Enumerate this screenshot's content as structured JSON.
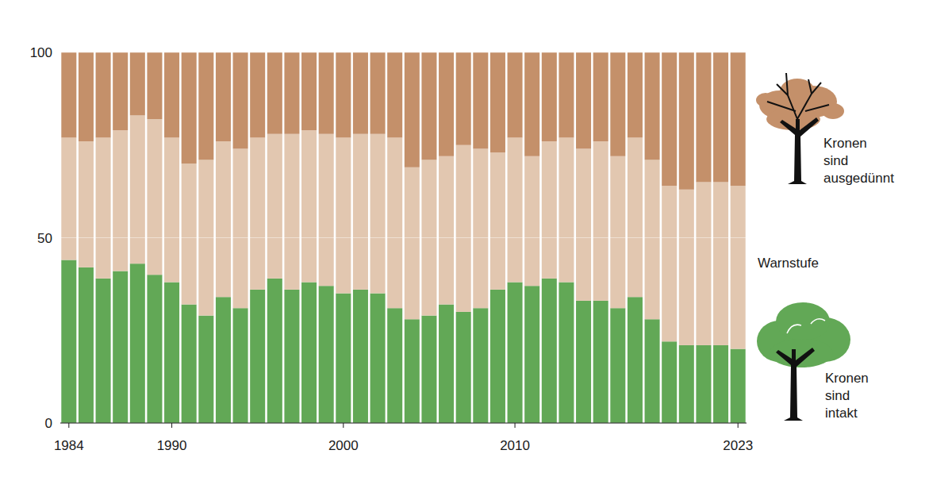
{
  "chart_data": {
    "type": "bar",
    "stacked": true,
    "categories": [
      "1984",
      null,
      null,
      null,
      null,
      null,
      "1990",
      null,
      null,
      null,
      null,
      null,
      null,
      null,
      null,
      null,
      "2000",
      null,
      null,
      null,
      null,
      null,
      null,
      null,
      null,
      null,
      "2010",
      null,
      null,
      null,
      null,
      null,
      null,
      null,
      null,
      null,
      null,
      null,
      null,
      "2023"
    ],
    "series": [
      {
        "name": "Kronen sind intakt",
        "color": "#62a856",
        "values": [
          44,
          42,
          39,
          41,
          43,
          40,
          38,
          32,
          29,
          34,
          31,
          36,
          39,
          36,
          38,
          37,
          35,
          36,
          35,
          31,
          28,
          29,
          32,
          30,
          31,
          36,
          38,
          37,
          39,
          38,
          33,
          33,
          31,
          34,
          28,
          22,
          21,
          21,
          21,
          20
        ]
      },
      {
        "name": "Warnstufe",
        "color": "#e2c7b0",
        "values": [
          33,
          34,
          38,
          38,
          40,
          42,
          39,
          38,
          42,
          42,
          43,
          41,
          39,
          42,
          41,
          41,
          42,
          42,
          43,
          46,
          41,
          42,
          40,
          45,
          43,
          37,
          39,
          35,
          37,
          39,
          41,
          43,
          41,
          43,
          43,
          42,
          42,
          44,
          44,
          44
        ]
      },
      {
        "name": "Kronen sind ausgedünnt",
        "color": "#c4906a",
        "values": [
          23,
          24,
          23,
          21,
          17,
          18,
          23,
          30,
          29,
          24,
          26,
          23,
          22,
          22,
          21,
          22,
          23,
          22,
          22,
          23,
          31,
          29,
          28,
          25,
          26,
          27,
          23,
          28,
          24,
          23,
          26,
          24,
          28,
          23,
          29,
          36,
          37,
          35,
          35,
          36
        ]
      }
    ],
    "ylim": [
      0,
      100
    ],
    "yticks": [
      0,
      50,
      100
    ],
    "grid": true,
    "legend": "right"
  }
}
